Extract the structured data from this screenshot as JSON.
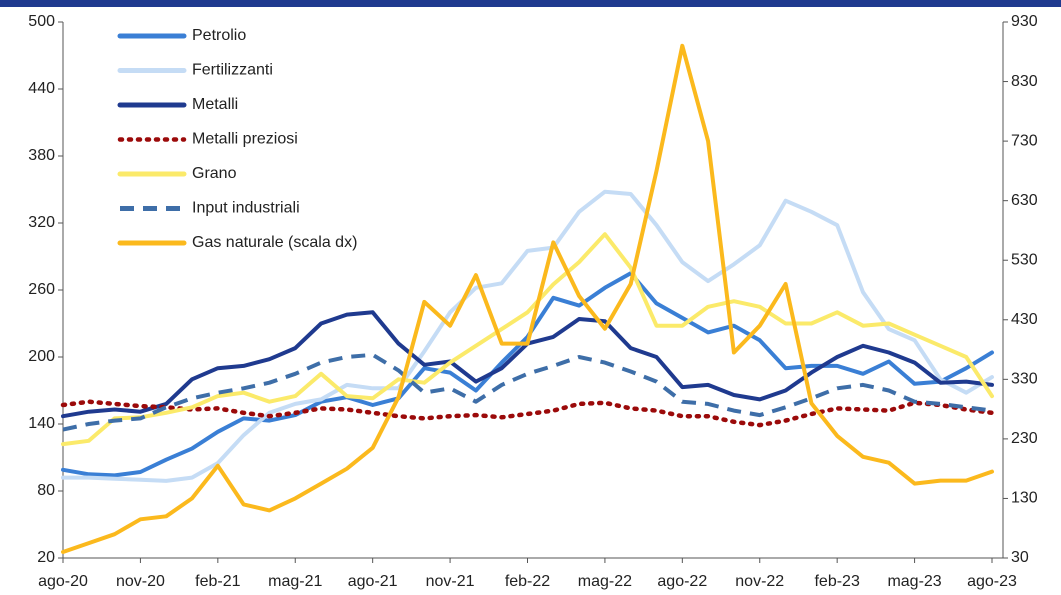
{
  "chart_data": {
    "type": "line",
    "categories": [
      "ago-20",
      null,
      null,
      "nov-20",
      null,
      null,
      "feb-21",
      null,
      null,
      "mag-21",
      null,
      null,
      "ago-21",
      null,
      null,
      "nov-21",
      null,
      null,
      "feb-22",
      null,
      null,
      "mag-22",
      null,
      null,
      "ago-22",
      null,
      null,
      "nov-22",
      null,
      null,
      "feb-23",
      null,
      null,
      "mag-23",
      null,
      null,
      "ago-23"
    ],
    "series": [
      {
        "name": "Petrolio",
        "color": "#3a7fd5",
        "dash": "solid",
        "values": [
          99,
          95,
          94,
          97,
          108,
          118,
          133,
          145,
          143,
          148,
          160,
          164,
          157,
          163,
          190,
          186,
          170,
          195,
          218,
          253,
          246,
          262,
          275,
          248,
          235,
          222,
          228,
          215,
          190,
          192,
          192,
          185,
          196,
          176,
          178,
          190,
          204
        ]
      },
      {
        "name": "Fertilizzanti",
        "color": "#c5dcf5",
        "dash": "solid",
        "values": [
          92,
          92,
          91,
          90,
          89,
          92,
          105,
          130,
          150,
          158,
          162,
          175,
          172,
          172,
          205,
          240,
          262,
          266,
          295,
          298,
          330,
          348,
          346,
          318,
          285,
          268,
          283,
          300,
          340,
          330,
          318,
          258,
          225,
          215,
          180,
          168,
          182
        ]
      },
      {
        "name": "Metalli",
        "color": "#1f3a8f",
        "dash": "solid",
        "values": [
          147,
          151,
          153,
          151,
          158,
          180,
          190,
          192,
          198,
          208,
          230,
          238,
          240,
          212,
          193,
          196,
          178,
          190,
          212,
          218,
          234,
          232,
          208,
          200,
          173,
          175,
          166,
          162,
          170,
          186,
          200,
          210,
          204,
          195,
          177,
          178,
          175
        ]
      },
      {
        "name": "Metalli preziosi",
        "color": "#9b0a0a",
        "dash": "dot",
        "values": [
          157,
          160,
          158,
          156,
          155,
          153,
          154,
          150,
          147,
          150,
          154,
          153,
          150,
          147,
          145,
          147,
          148,
          146,
          149,
          152,
          158,
          159,
          154,
          152,
          147,
          147,
          142,
          139,
          143,
          149,
          154,
          153,
          152,
          159,
          157,
          153,
          150
        ]
      },
      {
        "name": "Grano",
        "color": "#fbea6a",
        "dash": "solid",
        "values": [
          122,
          125,
          145,
          146,
          150,
          155,
          165,
          168,
          160,
          165,
          185,
          165,
          163,
          180,
          177,
          195,
          210,
          225,
          240,
          265,
          285,
          310,
          280,
          228,
          228,
          245,
          250,
          245,
          230,
          230,
          240,
          228,
          230,
          220,
          210,
          200,
          165
        ]
      },
      {
        "name": "Input industriali",
        "color": "#3e6ea8",
        "dash": "dash",
        "values": [
          135,
          140,
          143,
          145,
          155,
          163,
          168,
          172,
          177,
          185,
          195,
          200,
          202,
          188,
          168,
          172,
          160,
          175,
          185,
          192,
          200,
          195,
          187,
          178,
          160,
          158,
          152,
          148,
          155,
          163,
          172,
          175,
          170,
          160,
          158,
          155,
          152
        ]
      },
      {
        "name": "Gas naturale (scala dx)",
        "color": "#fbb91d",
        "dash": "solid",
        "axis": "y2",
        "values": [
          40,
          55,
          70,
          95,
          100,
          130,
          185,
          120,
          110,
          130,
          155,
          180,
          215,
          300,
          460,
          420,
          505,
          390,
          390,
          560,
          470,
          415,
          490,
          680,
          890,
          730,
          375,
          420,
          490,
          290,
          235,
          200,
          190,
          155,
          160,
          160,
          175
        ]
      }
    ],
    "ylim": [
      20,
      500
    ],
    "yticks": [
      20,
      80,
      140,
      200,
      260,
      320,
      380,
      440,
      500
    ],
    "y2lim": [
      30,
      930
    ],
    "y2ticks": [
      30,
      130,
      230,
      330,
      430,
      530,
      630,
      730,
      830,
      930
    ],
    "legend": "upper left"
  }
}
